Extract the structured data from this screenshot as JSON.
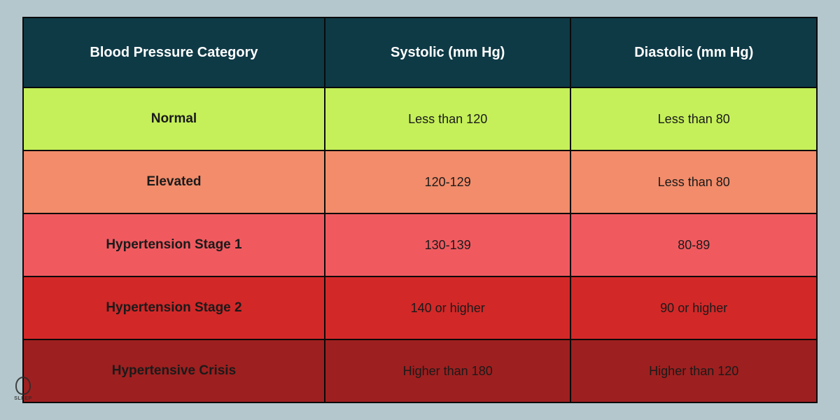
{
  "table": {
    "background_color": "#b4c7cc",
    "border_color": "#0a0a0a",
    "header": {
      "bg_color": "#0e3a46",
      "text_color": "#ffffff",
      "font_size": 20,
      "cells": [
        "Blood Pressure Category",
        "Systolic (mm Hg)",
        "Diastolic (mm Hg)"
      ]
    },
    "rows": [
      {
        "bg_color": "#c5f05a",
        "category": "Normal",
        "systolic": "Less than 120",
        "diastolic": "Less than 80"
      },
      {
        "bg_color": "#f28c6a",
        "category": "Elevated",
        "systolic": "120-129",
        "diastolic": "Less than 80"
      },
      {
        "bg_color": "#f05a5f",
        "category": "Hypertension Stage 1",
        "systolic": "130-139",
        "diastolic": "80-89"
      },
      {
        "bg_color": "#d32828",
        "category": "Hypertension Stage 2",
        "systolic": "140 or higher",
        "diastolic": "90 or higher"
      },
      {
        "bg_color": "#9e1f1f",
        "category": "Hypertensive Crisis",
        "systolic": "Higher than 180",
        "diastolic": "Higher than 120"
      }
    ]
  },
  "logo": {
    "text": "SLEEP"
  }
}
